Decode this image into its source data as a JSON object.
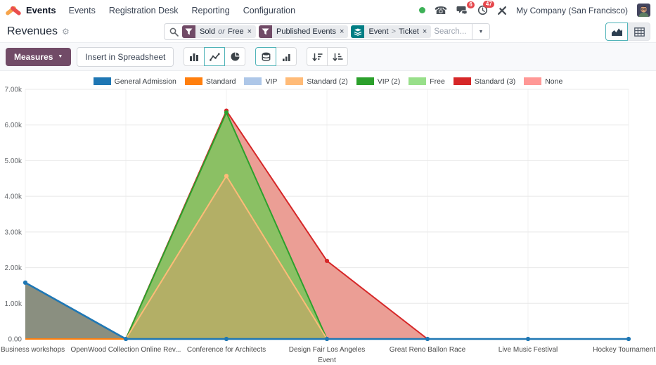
{
  "nav": {
    "app_name": "Events",
    "items": [
      "Events",
      "Registration Desk",
      "Reporting",
      "Configuration"
    ],
    "systray": {
      "icons": [
        "online-status",
        "phone",
        "messages",
        "activities",
        "tools"
      ],
      "message_count": "6",
      "activity_count": "47",
      "company": "My Company (San Francisco)"
    }
  },
  "control_panel": {
    "title": "Revenues",
    "search": {
      "placeholder": "Search...",
      "facets": [
        {
          "kind": "filter",
          "parts": [
            "Sold",
            "Free"
          ],
          "connector": "or",
          "close": "×"
        },
        {
          "kind": "filter",
          "parts": [
            "Published Events"
          ],
          "close": "×"
        },
        {
          "kind": "groupby",
          "parts": [
            "Event",
            "Ticket"
          ],
          "connector": ">",
          "close": "×"
        }
      ]
    },
    "view_switcher": {
      "views": [
        "area-chart-view",
        "pivot-view"
      ],
      "active": "area-chart-view"
    }
  },
  "toolbar": {
    "measures": "Measures",
    "insert_in_spreadsheet": "Insert in Spreadsheet",
    "icons": [
      "bar-chart",
      "line-chart",
      "pie-chart",
      "stacked",
      "cumulative",
      "descending",
      "ascending"
    ],
    "active_icons": [
      "line-chart",
      "stacked"
    ]
  },
  "chart_data": {
    "type": "line",
    "stacked": true,
    "values_as_plotted": true,
    "title": "",
    "xlabel": "Event",
    "ylabel": "",
    "ylim": [
      0,
      7000
    ],
    "y_ticks": [
      "0.00",
      "1.00k",
      "2.00k",
      "3.00k",
      "4.00k",
      "5.00k",
      "6.00k",
      "7.00k"
    ],
    "grid": true,
    "legend_position": "top",
    "categories": [
      "Business workshops",
      "OpenWood Collection Online Rev...",
      "Conference for Architects",
      "Design Fair Los Angeles",
      "Great Reno Ballon Race",
      "Live Music Festival",
      "Hockey Tournament"
    ],
    "legend": [
      {
        "name": "General Admission",
        "color": "#1f77b4"
      },
      {
        "name": "Standard",
        "color": "#ff7f0e"
      },
      {
        "name": "VIP",
        "color": "#aec7e8"
      },
      {
        "name": "Standard (2)",
        "color": "#ffbb78"
      },
      {
        "name": "VIP (2)",
        "color": "#2ca02c"
      },
      {
        "name": "Free",
        "color": "#98df8a"
      },
      {
        "name": "Standard (3)",
        "color": "#d62728"
      },
      {
        "name": "None",
        "color": "#ff9896"
      }
    ],
    "series": [
      {
        "name": "General Admission",
        "color": "#1f77b4",
        "fill": "#8a8f80",
        "values": [
          1580,
          0,
          0,
          0,
          0,
          0,
          0
        ]
      },
      {
        "name": "Standard",
        "color": "#ff7f0e",
        "values": [
          0,
          0,
          0,
          0,
          0,
          0,
          0
        ]
      },
      {
        "name": "VIP",
        "color": "#aec7e8",
        "values": [
          0,
          0,
          0,
          0,
          0,
          0,
          0
        ]
      },
      {
        "name": "Standard (2)",
        "color": "#ffbb78",
        "fill": "#b3af66",
        "values": [
          0,
          0,
          4570,
          0,
          0,
          0,
          0
        ]
      },
      {
        "name": "VIP (2)",
        "color": "#2ca02c",
        "fill": "#8bc064",
        "values": [
          0,
          0,
          6350,
          0,
          0,
          0,
          0
        ]
      },
      {
        "name": "Free",
        "color": "#98df8a",
        "values": [
          0,
          0,
          0,
          0,
          0,
          0,
          0
        ]
      },
      {
        "name": "Standard (3)",
        "color": "#d62728",
        "fill": "#eb9e95",
        "values": [
          0,
          0,
          6400,
          2190,
          0,
          0,
          0
        ]
      },
      {
        "name": "None",
        "color": "#ff9896",
        "values": [
          0,
          0,
          0,
          0,
          0,
          0,
          0
        ]
      }
    ]
  }
}
